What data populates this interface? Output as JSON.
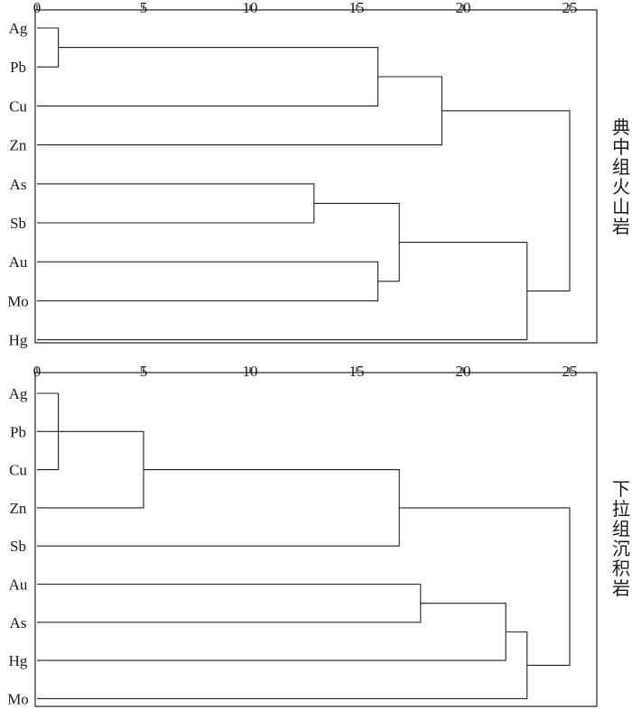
{
  "axis": {
    "ticks": [
      0,
      5,
      10,
      15,
      20,
      25
    ],
    "range": [
      0,
      26.3
    ]
  },
  "panels": [
    {
      "title": "典中组火山岩",
      "leaves": [
        "Ag",
        "Pb",
        "Cu",
        "Zn",
        "As",
        "Sb",
        "Au",
        "Mo",
        "Hg"
      ],
      "merges": [
        {
          "a": "Ag",
          "b": "Pb",
          "distance": 1
        },
        {
          "a": "Ag+Pb",
          "b": "Cu",
          "distance": 16
        },
        {
          "a": "Ag+Pb+Cu",
          "b": "Zn",
          "distance": 19
        },
        {
          "a": "As",
          "b": "Sb",
          "distance": 13
        },
        {
          "a": "Au",
          "b": "Mo",
          "distance": 16
        },
        {
          "a": "As+Sb",
          "b": "Au+Mo",
          "distance": 17
        },
        {
          "a": "As+Sb+Au+Mo",
          "b": "Hg",
          "distance": 23
        },
        {
          "a": "Ag+Pb+Cu+Zn",
          "b": "As+Sb+Au+Mo+Hg",
          "distance": 25
        }
      ]
    },
    {
      "title": "下拉组沉积岩",
      "leaves": [
        "Ag",
        "Pb",
        "Cu",
        "Zn",
        "Sb",
        "Au",
        "As",
        "Hg",
        "Mo"
      ],
      "merges": [
        {
          "a": "Ag",
          "b": "Cu",
          "distance": 1
        },
        {
          "a": "Ag+Cu",
          "b": "Pb",
          "distance": 1
        },
        {
          "a": "Ag+Cu+Pb",
          "b": "Zn",
          "distance": 5
        },
        {
          "a": "Ag+Cu+Pb+Zn",
          "b": "Sb",
          "distance": 17
        },
        {
          "a": "Au",
          "b": "As",
          "distance": 18
        },
        {
          "a": "Au+As",
          "b": "Hg",
          "distance": 22
        },
        {
          "a": "Au+As+Hg",
          "b": "Mo",
          "distance": 23
        },
        {
          "a": "Ag+Cu+Pb+Zn+Sb",
          "b": "Au+As+Hg+Mo",
          "distance": 25
        }
      ]
    }
  ]
}
